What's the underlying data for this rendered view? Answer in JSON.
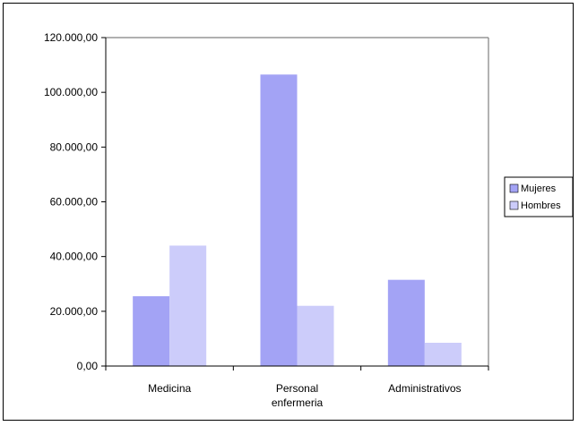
{
  "chart_data": {
    "type": "bar",
    "categories": [
      [
        "Medicina"
      ],
      [
        "Personal",
        "enfermeria"
      ],
      [
        "Administrativos"
      ]
    ],
    "series": [
      {
        "name": "Mujeres",
        "values": [
          25500,
          106500,
          31500
        ],
        "color": "#a3a3f5"
      },
      {
        "name": "Hombres",
        "values": [
          44000,
          22000,
          8500
        ],
        "color": "#ccccfa"
      }
    ],
    "ylim": [
      0,
      120000
    ],
    "yticks": [
      0,
      20000,
      40000,
      60000,
      80000,
      100000,
      120000
    ],
    "ytick_labels": [
      "0,00",
      "20.000,00",
      "40.000,00",
      "60.000,00",
      "80.000,00",
      "100.000,00",
      "120.000,00"
    ],
    "grid": false,
    "legend_position": "right",
    "title": "",
    "xlabel": "",
    "ylabel": ""
  }
}
